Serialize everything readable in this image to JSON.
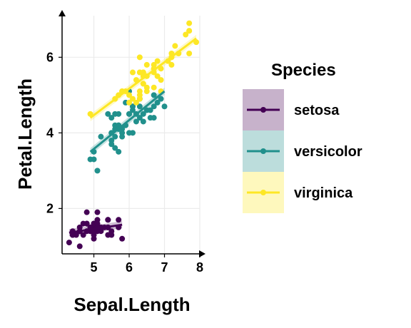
{
  "chart_data": {
    "type": "scatter",
    "title": "",
    "xlabel": "Sepal.Length",
    "ylabel": "Petal.Length",
    "xlim": [
      4.1,
      8.0
    ],
    "ylim": [
      0.8,
      7.1
    ],
    "x_ticks": [
      5,
      6,
      7,
      8
    ],
    "y_ticks": [
      2,
      4,
      6
    ],
    "grid": true,
    "regression_lines": true,
    "legend": {
      "title": "Species",
      "position": "right"
    },
    "series": [
      {
        "name": "setosa",
        "color": "#440154",
        "fit": {
          "x": [
            4.3,
            5.8
          ],
          "y": [
            1.36,
            1.57
          ]
        },
        "points": [
          [
            5.1,
            1.4
          ],
          [
            4.9,
            1.4
          ],
          [
            4.7,
            1.3
          ],
          [
            4.6,
            1.5
          ],
          [
            5.0,
            1.4
          ],
          [
            5.4,
            1.7
          ],
          [
            4.6,
            1.4
          ],
          [
            5.0,
            1.5
          ],
          [
            4.4,
            1.4
          ],
          [
            4.9,
            1.5
          ],
          [
            5.4,
            1.5
          ],
          [
            4.8,
            1.6
          ],
          [
            4.8,
            1.4
          ],
          [
            4.3,
            1.1
          ],
          [
            5.8,
            1.2
          ],
          [
            5.7,
            1.5
          ],
          [
            5.4,
            1.3
          ],
          [
            5.1,
            1.4
          ],
          [
            5.7,
            1.7
          ],
          [
            5.1,
            1.5
          ],
          [
            5.4,
            1.7
          ],
          [
            5.1,
            1.5
          ],
          [
            4.6,
            1.0
          ],
          [
            5.1,
            1.7
          ],
          [
            4.8,
            1.9
          ],
          [
            5.0,
            1.6
          ],
          [
            5.0,
            1.6
          ],
          [
            5.2,
            1.5
          ],
          [
            5.2,
            1.4
          ],
          [
            4.7,
            1.6
          ],
          [
            4.8,
            1.6
          ],
          [
            5.4,
            1.5
          ],
          [
            5.2,
            1.5
          ],
          [
            5.5,
            1.4
          ],
          [
            4.9,
            1.5
          ],
          [
            5.0,
            1.2
          ],
          [
            5.5,
            1.3
          ],
          [
            4.9,
            1.4
          ],
          [
            4.4,
            1.3
          ],
          [
            5.1,
            1.5
          ],
          [
            5.0,
            1.3
          ],
          [
            4.5,
            1.3
          ],
          [
            4.4,
            1.3
          ],
          [
            5.0,
            1.6
          ],
          [
            5.1,
            1.9
          ],
          [
            4.8,
            1.4
          ],
          [
            5.1,
            1.6
          ],
          [
            4.6,
            1.4
          ],
          [
            5.3,
            1.5
          ],
          [
            5.0,
            1.4
          ]
        ]
      },
      {
        "name": "versicolor",
        "color": "#21908C",
        "fit": {
          "x": [
            4.9,
            7.0
          ],
          "y": [
            3.5,
            5.1
          ]
        },
        "points": [
          [
            7.0,
            4.7
          ],
          [
            6.4,
            4.5
          ],
          [
            6.9,
            4.9
          ],
          [
            5.5,
            4.0
          ],
          [
            6.5,
            4.6
          ],
          [
            5.7,
            4.5
          ],
          [
            6.3,
            4.7
          ],
          [
            4.9,
            3.3
          ],
          [
            6.6,
            4.6
          ],
          [
            5.2,
            3.9
          ],
          [
            5.0,
            3.5
          ],
          [
            5.9,
            4.2
          ],
          [
            6.0,
            4.0
          ],
          [
            6.1,
            4.7
          ],
          [
            5.6,
            3.6
          ],
          [
            6.7,
            4.4
          ],
          [
            5.6,
            4.5
          ],
          [
            5.8,
            4.1
          ],
          [
            6.2,
            4.5
          ],
          [
            5.6,
            3.9
          ],
          [
            5.9,
            4.8
          ],
          [
            6.1,
            4.0
          ],
          [
            6.3,
            4.9
          ],
          [
            6.1,
            4.7
          ],
          [
            6.4,
            4.3
          ],
          [
            6.6,
            4.4
          ],
          [
            6.8,
            4.8
          ],
          [
            6.7,
            5.0
          ],
          [
            6.0,
            4.5
          ],
          [
            5.7,
            3.5
          ],
          [
            5.5,
            3.8
          ],
          [
            5.5,
            3.7
          ],
          [
            5.8,
            3.9
          ],
          [
            6.0,
            5.1
          ],
          [
            5.4,
            4.5
          ],
          [
            6.0,
            4.5
          ],
          [
            6.7,
            4.7
          ],
          [
            6.3,
            4.4
          ],
          [
            5.6,
            4.1
          ],
          [
            5.5,
            4.0
          ],
          [
            5.5,
            4.4
          ],
          [
            6.1,
            4.6
          ],
          [
            5.8,
            4.0
          ],
          [
            5.0,
            3.3
          ],
          [
            5.6,
            4.2
          ],
          [
            5.7,
            4.2
          ],
          [
            5.7,
            4.2
          ],
          [
            6.2,
            4.3
          ],
          [
            5.1,
            3.0
          ],
          [
            5.7,
            4.1
          ]
        ]
      },
      {
        "name": "virginica",
        "color": "#FDE725",
        "fit": {
          "x": [
            4.9,
            7.9
          ],
          "y": [
            4.4,
            6.5
          ]
        },
        "points": [
          [
            6.3,
            6.0
          ],
          [
            5.8,
            5.1
          ],
          [
            7.1,
            5.9
          ],
          [
            6.3,
            5.6
          ],
          [
            6.5,
            5.8
          ],
          [
            7.6,
            6.6
          ],
          [
            4.9,
            4.5
          ],
          [
            7.3,
            6.3
          ],
          [
            6.7,
            5.8
          ],
          [
            7.2,
            6.1
          ],
          [
            6.5,
            5.1
          ],
          [
            6.4,
            5.3
          ],
          [
            6.8,
            5.5
          ],
          [
            5.7,
            5.0
          ],
          [
            5.8,
            5.1
          ],
          [
            6.4,
            5.3
          ],
          [
            6.5,
            5.5
          ],
          [
            7.7,
            6.7
          ],
          [
            7.7,
            6.9
          ],
          [
            6.0,
            5.0
          ],
          [
            6.9,
            5.7
          ],
          [
            5.6,
            4.9
          ],
          [
            7.7,
            6.7
          ],
          [
            6.3,
            4.9
          ],
          [
            6.7,
            5.7
          ],
          [
            7.2,
            6.0
          ],
          [
            6.2,
            4.8
          ],
          [
            6.1,
            4.9
          ],
          [
            6.4,
            5.6
          ],
          [
            7.2,
            5.8
          ],
          [
            7.4,
            6.1
          ],
          [
            7.9,
            6.4
          ],
          [
            6.4,
            5.6
          ],
          [
            6.3,
            5.1
          ],
          [
            6.1,
            5.6
          ],
          [
            7.7,
            6.1
          ],
          [
            6.3,
            5.6
          ],
          [
            6.4,
            5.5
          ],
          [
            6.0,
            4.8
          ],
          [
            6.9,
            5.4
          ],
          [
            6.7,
            5.6
          ],
          [
            6.9,
            5.1
          ],
          [
            5.8,
            5.1
          ],
          [
            6.8,
            5.9
          ],
          [
            6.7,
            5.7
          ],
          [
            6.7,
            5.2
          ],
          [
            6.3,
            5.0
          ],
          [
            6.5,
            5.2
          ],
          [
            6.2,
            5.4
          ],
          [
            5.9,
            5.1
          ]
        ]
      }
    ]
  }
}
